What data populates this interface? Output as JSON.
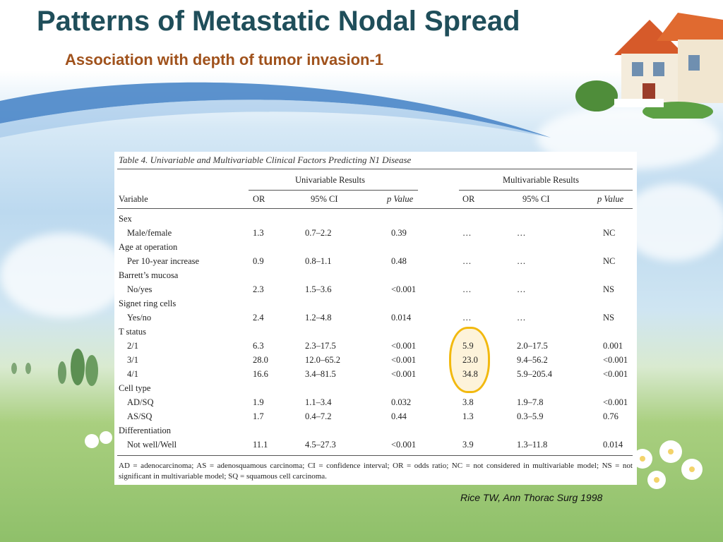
{
  "slide": {
    "title": "Patterns of Metastatic Nodal Spread",
    "subtitle": "Association with depth of tumor invasion-1",
    "citation": "Rice TW,  Ann Thorac Surg 1998"
  },
  "table": {
    "caption": "Table 4.  Univariable and Multivariable Clinical Factors Predicting N1 Disease",
    "group_headers": {
      "univariable": "Univariable Results",
      "multivariable": "Multivariable Results"
    },
    "columns": [
      "Variable",
      "OR",
      "95% CI",
      "p Value",
      "OR",
      "95% CI",
      "p Value"
    ],
    "rows": [
      {
        "variable": "Sex",
        "group": true
      },
      {
        "variable": "Male/female",
        "or": "1.3",
        "ci": "0.7–2.2",
        "p": "0.39",
        "mor": "…",
        "mci": "…",
        "mp": "NC"
      },
      {
        "variable": "Age at operation",
        "group": true
      },
      {
        "variable": "Per 10-year increase",
        "or": "0.9",
        "ci": "0.8–1.1",
        "p": "0.48",
        "mor": "…",
        "mci": "…",
        "mp": "NC"
      },
      {
        "variable": "Barrett’s mucosa",
        "group": true
      },
      {
        "variable": "No/yes",
        "or": "2.3",
        "ci": "1.5–3.6",
        "p": "<0.001",
        "mor": "…",
        "mci": "…",
        "mp": "NS"
      },
      {
        "variable": "Signet ring cells",
        "group": true
      },
      {
        "variable": "Yes/no",
        "or": "2.4",
        "ci": "1.2–4.8",
        "p": "0.014",
        "mor": "…",
        "mci": "…",
        "mp": "NS"
      },
      {
        "variable": "T status",
        "group": true
      },
      {
        "variable": "2/1",
        "or": "6.3",
        "ci": "2.3–17.5",
        "p": "<0.001",
        "mor": "5.9",
        "mci": "2.0–17.5",
        "mp": "0.001"
      },
      {
        "variable": "3/1",
        "or": "28.0",
        "ci": "12.0–65.2",
        "p": "<0.001",
        "mor": "23.0",
        "mci": "9.4–56.2",
        "mp": "<0.001"
      },
      {
        "variable": "4/1",
        "or": "16.6",
        "ci": "3.4–81.5",
        "p": "<0.001",
        "mor": "34.8",
        "mci": "5.9–205.4",
        "mp": "<0.001"
      },
      {
        "variable": "Cell type",
        "group": true
      },
      {
        "variable": "AD/SQ",
        "or": "1.9",
        "ci": "1.1–3.4",
        "p": "0.032",
        "mor": "3.8",
        "mci": "1.9–7.8",
        "mp": "<0.001"
      },
      {
        "variable": "AS/SQ",
        "or": "1.7",
        "ci": "0.4–7.2",
        "p": "0.44",
        "mor": "1.3",
        "mci": "0.3–5.9",
        "mp": "0.76"
      },
      {
        "variable": "Differentiation",
        "group": true
      },
      {
        "variable": "Not well/Well",
        "or": "11.1",
        "ci": "4.5–27.3",
        "p": "<0.001",
        "mor": "3.9",
        "mci": "1.3–11.8",
        "mp": "0.014"
      }
    ],
    "footnote": "AD = adenocarcinoma;   AS = adenosquamous carcinoma;   CI = confidence interval;   OR = odds ratio;   NC = not considered in multivariable model;   NS = not significant in multivariable model;   SQ = squamous cell carcinoma."
  },
  "colors": {
    "title": "#1f4e5a",
    "subtitle": "#a0521c",
    "highlight": "#f2b90f"
  }
}
